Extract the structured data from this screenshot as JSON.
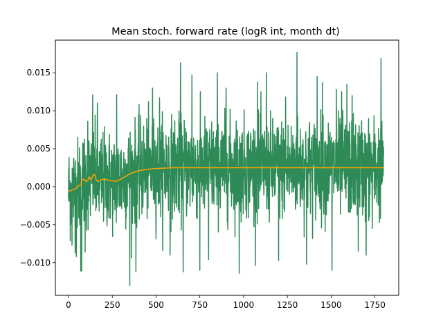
{
  "chart_data": {
    "type": "line",
    "title": "Mean stoch. forward rate (logR int, month dt)",
    "xlabel": "",
    "ylabel": "",
    "xlim": [
      -75,
      1886
    ],
    "ylim": [
      -0.0143,
      0.0193
    ],
    "xticks": [
      0,
      250,
      500,
      750,
      1000,
      1250,
      1500,
      1750
    ],
    "xtick_labels": [
      "0",
      "250",
      "500",
      "750",
      "1000",
      "1250",
      "1500",
      "1750"
    ],
    "yticks": [
      -0.01,
      -0.005,
      0.0,
      0.005,
      0.01,
      0.015
    ],
    "ytick_labels": [
      "−0.010",
      "−0.005",
      "0.000",
      "0.005",
      "0.010",
      "0.015"
    ],
    "grid": false,
    "legend": "none",
    "series": [
      {
        "color": "#2e8b57",
        "x_start": 0,
        "x_end": 1800,
        "n_points": 1801,
        "spikes": [
          {
            "x": 20,
            "y": -0.0077
          },
          {
            "x": 45,
            "y": -0.0092
          },
          {
            "x": 70,
            "y": -0.0111
          },
          {
            "x": 75,
            "y": -0.0111
          },
          {
            "x": 95,
            "y": -0.0086
          },
          {
            "x": 110,
            "y": 0.0086
          },
          {
            "x": 138,
            "y": 0.0121
          },
          {
            "x": 165,
            "y": 0.011
          },
          {
            "x": 275,
            "y": 0.0121
          },
          {
            "x": 350,
            "y": -0.013
          },
          {
            "x": 385,
            "y": -0.0112
          },
          {
            "x": 480,
            "y": 0.013
          },
          {
            "x": 520,
            "y": 0.0117
          },
          {
            "x": 580,
            "y": -0.009
          },
          {
            "x": 640,
            "y": 0.0163
          },
          {
            "x": 655,
            "y": -0.0112
          },
          {
            "x": 705,
            "y": 0.0147
          },
          {
            "x": 750,
            "y": -0.011
          },
          {
            "x": 800,
            "y": -0.0096
          },
          {
            "x": 850,
            "y": 0.015
          },
          {
            "x": 900,
            "y": 0.013
          },
          {
            "x": 975,
            "y": -0.0114
          },
          {
            "x": 1080,
            "y": 0.0138
          },
          {
            "x": 1130,
            "y": 0.015
          },
          {
            "x": 1200,
            "y": -0.0097
          },
          {
            "x": 1240,
            "y": 0.0118
          },
          {
            "x": 1305,
            "y": 0.0177
          },
          {
            "x": 1360,
            "y": -0.0102
          },
          {
            "x": 1420,
            "y": 0.0145
          },
          {
            "x": 1450,
            "y": 0.0137
          },
          {
            "x": 1505,
            "y": -0.011
          },
          {
            "x": 1530,
            "y": 0.0128
          },
          {
            "x": 1560,
            "y": 0.0125
          },
          {
            "x": 1590,
            "y": 0.0135
          },
          {
            "x": 1620,
            "y": 0.012
          },
          {
            "x": 1655,
            "y": -0.0085
          },
          {
            "x": 1700,
            "y": -0.009
          },
          {
            "x": 1735,
            "y": -0.0055
          },
          {
            "x": 1785,
            "y": 0.0169
          },
          {
            "x": 1800,
            "y": 0.0043
          }
        ]
      },
      {
        "color": "#ffa500",
        "points": [
          [
            0,
            -0.0006
          ],
          [
            40,
            -0.0003
          ],
          [
            60,
            0.0002
          ],
          [
            72,
            0.0002
          ],
          [
            74,
            0.0008
          ],
          [
            90,
            0.001
          ],
          [
            98,
            0.0007
          ],
          [
            110,
            0.0008
          ],
          [
            118,
            0.0013
          ],
          [
            128,
            0.0009
          ],
          [
            140,
            0.0015
          ],
          [
            150,
            0.0016
          ],
          [
            158,
            0.0009
          ],
          [
            168,
            0.0007
          ],
          [
            200,
            0.001
          ],
          [
            240,
            0.0008
          ],
          [
            270,
            0.0007
          ],
          [
            300,
            0.001
          ],
          [
            350,
            0.0017
          ],
          [
            400,
            0.0021
          ],
          [
            450,
            0.0023
          ],
          [
            500,
            0.0024
          ],
          [
            600,
            0.0025
          ],
          [
            750,
            0.0025
          ],
          [
            1000,
            0.0025
          ],
          [
            1250,
            0.0025
          ],
          [
            1500,
            0.0025
          ],
          [
            1800,
            0.0025
          ]
        ]
      }
    ]
  }
}
